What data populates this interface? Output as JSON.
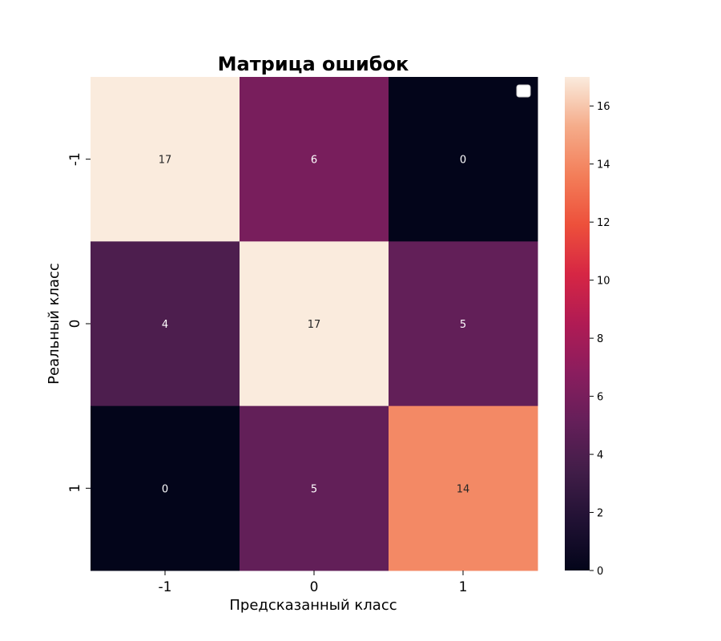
{
  "chart_data": {
    "type": "heatmap",
    "title": "Матрица ошибок",
    "xlabel": "Предсказанный класс",
    "ylabel": "Реальный класс",
    "x_categories": [
      "-1",
      "0",
      "1"
    ],
    "y_categories": [
      "-1",
      "0",
      "1"
    ],
    "values": [
      [
        17,
        6,
        0
      ],
      [
        4,
        17,
        5
      ],
      [
        0,
        5,
        14
      ]
    ],
    "annotations": true,
    "colormap": "rocket",
    "vmin": 0,
    "vmax": 17,
    "colorbar_ticks": [
      "0",
      "2",
      "4",
      "6",
      "8",
      "10",
      "12",
      "14",
      "16"
    ],
    "legend": "top-right, empty"
  }
}
